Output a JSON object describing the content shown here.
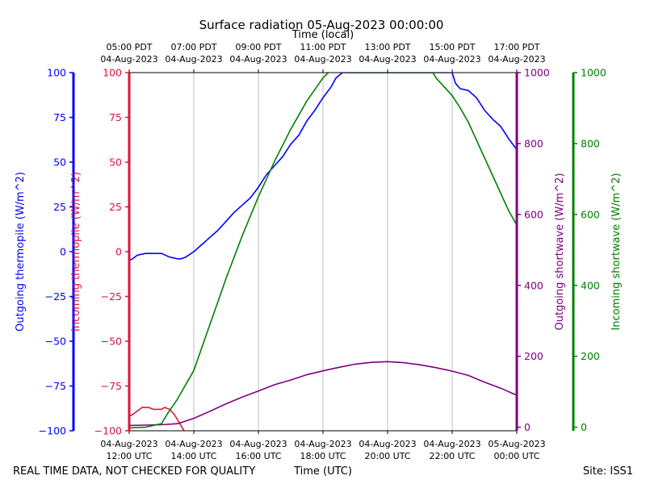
{
  "chart_data": {
    "type": "line",
    "title": "Surface radiation 05-Aug-2023 00:00:00",
    "xlabel_bottom": "Time (UTC)",
    "xlabel_top": "Time (local)",
    "x_unit": "hours UTC on 04-Aug-2023",
    "xlim": [
      12,
      24
    ],
    "x_ticks_bottom": [
      {
        "x": 12,
        "line1": "04-Aug-2023",
        "line2": "12:00 UTC"
      },
      {
        "x": 14,
        "line1": "04-Aug-2023",
        "line2": "14:00 UTC"
      },
      {
        "x": 16,
        "line1": "04-Aug-2023",
        "line2": "16:00 UTC"
      },
      {
        "x": 18,
        "line1": "04-Aug-2023",
        "line2": "18:00 UTC"
      },
      {
        "x": 20,
        "line1": "04-Aug-2023",
        "line2": "20:00 UTC"
      },
      {
        "x": 22,
        "line1": "04-Aug-2023",
        "line2": "22:00 UTC"
      },
      {
        "x": 24,
        "line1": "05-Aug-2023",
        "line2": "00:00 UTC"
      }
    ],
    "x_ticks_top": [
      {
        "x": 12,
        "line1": "05:00 PDT",
        "line2": "04-Aug-2023"
      },
      {
        "x": 14,
        "line1": "07:00 PDT",
        "line2": "04-Aug-2023"
      },
      {
        "x": 16,
        "line1": "09:00 PDT",
        "line2": "04-Aug-2023"
      },
      {
        "x": 18,
        "line1": "11:00 PDT",
        "line2": "04-Aug-2023"
      },
      {
        "x": 20,
        "line1": "13:00 PDT",
        "line2": "04-Aug-2023"
      },
      {
        "x": 22,
        "line1": "15:00 PDT",
        "line2": "04-Aug-2023"
      },
      {
        "x": 24,
        "line1": "17:00 PDT",
        "line2": "04-Aug-2023"
      }
    ],
    "grid": "vertical",
    "axes": [
      {
        "id": "out_thermo",
        "label": "Outgoing thermopile (W/m^2)",
        "color": "#0000ff",
        "ylim": [
          -100,
          100
        ],
        "ticks": [
          -100,
          -75,
          -50,
          -25,
          0,
          25,
          50,
          75,
          100
        ]
      },
      {
        "id": "in_thermo",
        "label": "Incoming thermopile (W/m^2)",
        "color": "#dc143c",
        "ylim": [
          -100,
          100
        ],
        "ticks": [
          -100,
          -75,
          -50,
          -25,
          0,
          25,
          50,
          75,
          100
        ]
      },
      {
        "id": "out_sw",
        "label": "Outgoing shortwave (W/m^2)",
        "color": "#800080",
        "ylim": [
          -10,
          1000
        ],
        "ticks": [
          0,
          200,
          400,
          600,
          800,
          1000
        ]
      },
      {
        "id": "in_sw",
        "label": "Incoming shortwave (W/m^2)",
        "color": "#008000",
        "ylim": [
          -10,
          1000
        ],
        "ticks": [
          0,
          200,
          400,
          600,
          800,
          1000
        ]
      }
    ],
    "series": [
      {
        "axis": "out_thermo",
        "color": "#0000ff",
        "x": [
          12,
          12.1,
          12.25,
          12.5,
          12.75,
          13,
          13.25,
          13.5,
          13.6,
          13.75,
          14,
          14.25,
          14.5,
          14.75,
          15,
          15.25,
          15.5,
          15.75,
          16,
          16.25,
          16.5,
          16.75,
          17,
          17.25,
          17.5,
          17.75,
          18,
          18.25,
          18.4,
          18.6,
          19,
          19.5,
          20,
          20.5,
          21,
          21.5,
          21.75,
          22,
          22.1,
          22.25,
          22.5,
          22.75,
          23,
          23.25,
          23.5,
          23.75,
          24
        ],
        "y": [
          -5,
          -4,
          -2,
          -1,
          -1,
          -1,
          -3,
          -4,
          -4,
          -3,
          0,
          4,
          8,
          12,
          17,
          22,
          26,
          30,
          36,
          43,
          48,
          53,
          60,
          65,
          73,
          79,
          86,
          92,
          97,
          100,
          100,
          100,
          100,
          100,
          100,
          100,
          100,
          100,
          94,
          91,
          90,
          86,
          79,
          74,
          70,
          63,
          57
        ]
      },
      {
        "axis": "in_thermo",
        "color": "#dc143c",
        "x": [
          12,
          12.1,
          12.25,
          12.4,
          12.6,
          12.75,
          12.9,
          13,
          13.1,
          13.25,
          13.4,
          13.6,
          13.7
        ],
        "y": [
          -92,
          -91,
          -89,
          -87,
          -87,
          -88,
          -88,
          -88,
          -87,
          -88,
          -91,
          -97,
          -100
        ]
      },
      {
        "axis": "out_sw",
        "color": "#800080",
        "x": [
          12,
          12.5,
          13,
          13.5,
          14,
          14.5,
          15,
          15.5,
          16,
          16.5,
          17,
          17.5,
          18,
          18.5,
          19,
          19.5,
          20,
          20.5,
          21,
          21.5,
          22,
          22.5,
          23,
          23.5,
          24
        ],
        "y": [
          5,
          6,
          7,
          10,
          25,
          45,
          66,
          85,
          102,
          120,
          133,
          148,
          159,
          169,
          178,
          183,
          185,
          182,
          176,
          168,
          158,
          146,
          127,
          110,
          90
        ]
      },
      {
        "axis": "in_sw",
        "color": "#008000",
        "x": [
          12,
          12.5,
          13,
          13.2,
          13.5,
          14,
          14.5,
          15,
          15.5,
          16,
          16.5,
          17,
          17.5,
          18,
          18.5,
          18.7,
          18.8,
          19,
          19.5,
          20,
          20.5,
          21,
          21.4,
          21.5,
          21.75,
          22,
          22.25,
          22.5,
          22.75,
          23,
          23.25,
          23.5,
          23.75,
          24
        ],
        "y": [
          -2,
          0,
          10,
          40,
          80,
          160,
          290,
          420,
          540,
          650,
          750,
          840,
          920,
          985,
          1030,
          1000,
          1000,
          1000,
          1000,
          1000,
          1000,
          1000,
          1000,
          985,
          960,
          935,
          900,
          860,
          810,
          760,
          710,
          660,
          610,
          570
        ]
      }
    ],
    "footer_left": "REAL TIME DATA, NOT CHECKED FOR QUALITY",
    "footer_right": "Site: ISS1"
  }
}
